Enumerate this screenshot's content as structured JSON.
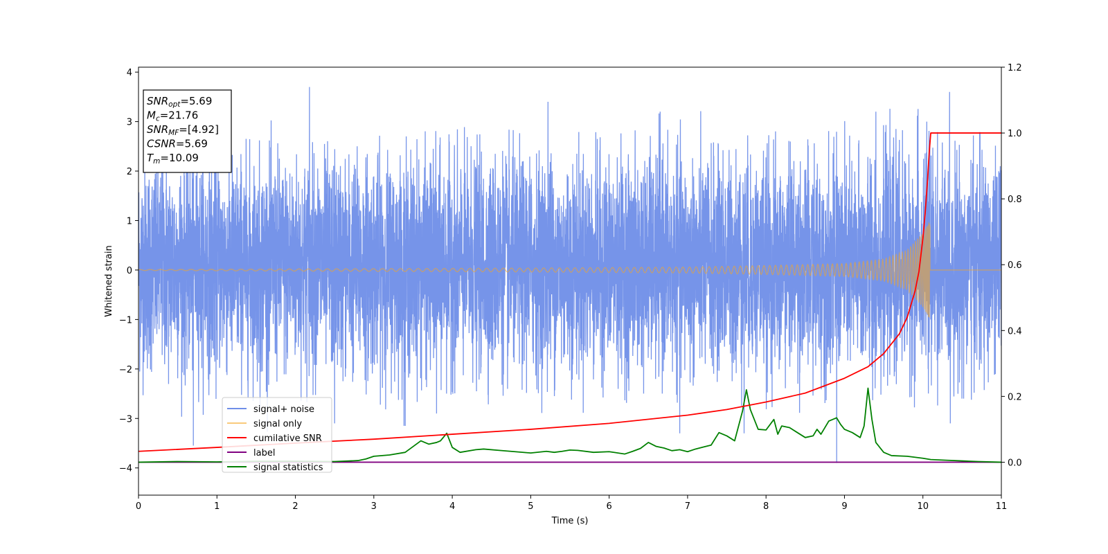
{
  "chart_data": {
    "type": "line",
    "xlabel": "Time (s)",
    "ylabel": "Whitened strain",
    "xlim": [
      0,
      11
    ],
    "ylim_left": [
      -4.55,
      4.1
    ],
    "ylim_right": [
      -0.1,
      1.2
    ],
    "x_ticks": [
      "0",
      "1",
      "2",
      "3",
      "4",
      "5",
      "6",
      "7",
      "8",
      "9",
      "10",
      "11"
    ],
    "y_ticks_left": [
      "−4",
      "−3",
      "−2",
      "−1",
      "0",
      "1",
      "2",
      "3",
      "4"
    ],
    "y_ticks_right": [
      "0.0",
      "0.2",
      "0.4",
      "0.6",
      "0.8",
      "1.0",
      "1.2"
    ],
    "legend_position": "lower-left",
    "colors": {
      "signal_noise": "#6f8ee8",
      "signal_only": "#f5a623",
      "cumulative_snr": "#ff0000",
      "label": "#800080",
      "signal_statistics": "#008000"
    },
    "info_box": [
      {
        "main": "SNR",
        "sub": "opt",
        "rest": "=5.69"
      },
      {
        "main": "M",
        "sub": "c",
        "rest": "=21.76"
      },
      {
        "main": "SNR",
        "sub": "MF",
        "rest": "=[4.92]"
      },
      {
        "main": "CSNR",
        "sub": "",
        "rest": "=5.69"
      },
      {
        "main": "T",
        "sub": "m",
        "rest": "=10.09"
      }
    ],
    "series": [
      {
        "name": "signal+ noise",
        "axis": "left",
        "note_generation": "noise",
        "typical_range": [
          -2.4,
          2.6
        ],
        "extremes": [
          [
            0.7,
            -3.55
          ],
          [
            1.55,
            -2.85
          ],
          [
            2.18,
            3.7
          ],
          [
            2.5,
            -3.1
          ],
          [
            3.4,
            -3.15
          ],
          [
            3.8,
            -2.9
          ],
          [
            5.22,
            3.4
          ],
          [
            6.65,
            3.2
          ],
          [
            6.9,
            -3.3
          ],
          [
            7.72,
            -3.3
          ],
          [
            8.9,
            -3.9
          ],
          [
            9.4,
            3.2
          ],
          [
            10.05,
            3.0
          ],
          [
            10.1,
            -1.0
          ],
          [
            10.35,
            -3.1
          ]
        ]
      },
      {
        "name": "signal only",
        "axis": "left",
        "t_merge": 10.09,
        "amplitude_envelope": [
          [
            0,
            0.01
          ],
          [
            5,
            0.04
          ],
          [
            7,
            0.06
          ],
          [
            8,
            0.09
          ],
          [
            9,
            0.13
          ],
          [
            9.5,
            0.22
          ],
          [
            9.8,
            0.4
          ],
          [
            10.0,
            0.75
          ],
          [
            10.09,
            1.0
          ]
        ]
      },
      {
        "name": "cumilative SNR",
        "axis": "right",
        "x": [
          0,
          1,
          2,
          3,
          4,
          5,
          6,
          7,
          7.5,
          8,
          8.5,
          9,
          9.3,
          9.5,
          9.7,
          9.8,
          9.9,
          9.95,
          10.0,
          10.03,
          10.06,
          10.08,
          10.1,
          11
        ],
        "y": [
          0.033,
          0.045,
          0.058,
          0.07,
          0.085,
          0.1,
          0.118,
          0.143,
          0.16,
          0.183,
          0.21,
          0.255,
          0.29,
          0.33,
          0.39,
          0.44,
          0.52,
          0.58,
          0.68,
          0.76,
          0.86,
          0.94,
          1.0,
          1.0
        ]
      },
      {
        "name": "label",
        "axis": "right",
        "x": [
          0,
          11
        ],
        "y": [
          0,
          0
        ]
      },
      {
        "name": "signal statistics",
        "axis": "right",
        "x": [
          0,
          0.5,
          1,
          1.5,
          2,
          2.5,
          2.8,
          2.9,
          3.0,
          3.2,
          3.4,
          3.6,
          3.7,
          3.8,
          3.85,
          3.93,
          4.0,
          4.1,
          4.3,
          4.4,
          4.6,
          4.8,
          5.0,
          5.2,
          5.3,
          5.4,
          5.5,
          5.6,
          5.8,
          6.0,
          6.2,
          6.3,
          6.4,
          6.5,
          6.6,
          6.7,
          6.8,
          6.9,
          7.0,
          7.1,
          7.3,
          7.4,
          7.5,
          7.6,
          7.7,
          7.75,
          7.8,
          7.9,
          8.0,
          8.1,
          8.15,
          8.2,
          8.3,
          8.4,
          8.5,
          8.6,
          8.65,
          8.7,
          8.8,
          8.9,
          8.95,
          9.0,
          9.1,
          9.2,
          9.25,
          9.3,
          9.35,
          9.4,
          9.5,
          9.6,
          9.8,
          10.0,
          10.1,
          10.3,
          10.5,
          10.7,
          11
        ],
        "y": [
          0.0,
          0.002,
          0.001,
          0.003,
          0.003,
          0.002,
          0.005,
          0.01,
          0.018,
          0.022,
          0.03,
          0.065,
          0.055,
          0.06,
          0.065,
          0.088,
          0.045,
          0.03,
          0.038,
          0.04,
          0.036,
          0.032,
          0.028,
          0.033,
          0.03,
          0.033,
          0.037,
          0.036,
          0.03,
          0.032,
          0.025,
          0.033,
          0.042,
          0.06,
          0.048,
          0.043,
          0.035,
          0.038,
          0.032,
          0.04,
          0.052,
          0.09,
          0.08,
          0.065,
          0.155,
          0.22,
          0.16,
          0.1,
          0.098,
          0.13,
          0.085,
          0.11,
          0.105,
          0.09,
          0.075,
          0.08,
          0.1,
          0.085,
          0.125,
          0.135,
          0.115,
          0.1,
          0.09,
          0.075,
          0.11,
          0.225,
          0.13,
          0.06,
          0.03,
          0.02,
          0.018,
          0.012,
          0.008,
          0.006,
          0.004,
          0.002,
          0.0
        ]
      }
    ]
  }
}
